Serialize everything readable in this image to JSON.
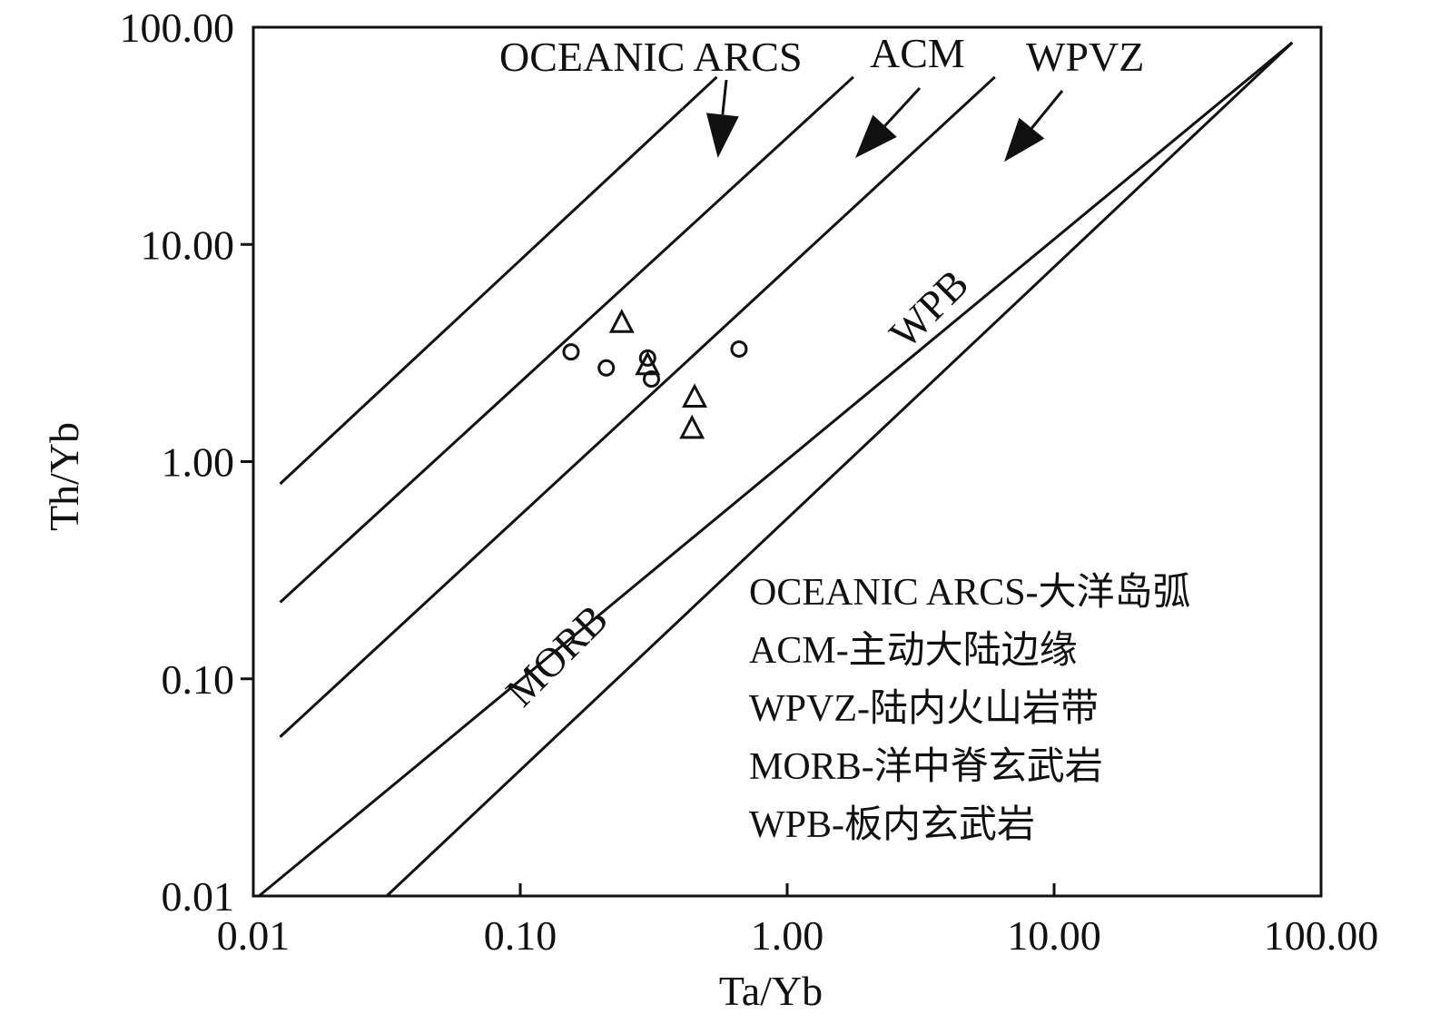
{
  "chart_data": {
    "type": "scatter",
    "xlabel": "Ta/Yb",
    "ylabel": "Th/Yb",
    "xscale": "log",
    "yscale": "log",
    "xlim": [
      0.01,
      100
    ],
    "ylim": [
      0.01,
      100
    ],
    "x_ticks": [
      0.01,
      0.1,
      1,
      10,
      100
    ],
    "x_tick_labels": [
      "0.01",
      "0.10",
      "1.00",
      "10.00",
      "100.00"
    ],
    "y_ticks": [
      0.01,
      0.1,
      1,
      10,
      100
    ],
    "y_tick_labels": [
      "0.01",
      "0.10",
      "1.00",
      "10.00",
      "100.00"
    ],
    "grid": false,
    "boundary_lines": [
      {
        "x": [
          0.0126,
          0.545
        ],
        "y": [
          0.79,
          59
        ]
      },
      {
        "x": [
          0.0126,
          1.77
        ],
        "y": [
          0.225,
          59
        ]
      },
      {
        "x": [
          0.0126,
          6.0
        ],
        "y": [
          0.054,
          59
        ]
      },
      {
        "x": [
          0.0105,
          78
        ],
        "y": [
          0.01,
          85
        ]
      },
      {
        "x": [
          0.0316,
          78
        ],
        "y": [
          0.01,
          85
        ]
      }
    ],
    "series": [
      {
        "marker": "circle",
        "points": [
          {
            "x": 0.155,
            "y": 3.2
          },
          {
            "x": 0.21,
            "y": 2.7
          },
          {
            "x": 0.3,
            "y": 3.0
          },
          {
            "x": 0.31,
            "y": 2.4
          },
          {
            "x": 0.66,
            "y": 3.3
          }
        ]
      },
      {
        "marker": "triangle",
        "points": [
          {
            "x": 0.24,
            "y": 4.3
          },
          {
            "x": 0.3,
            "y": 2.75
          },
          {
            "x": 0.45,
            "y": 1.95
          },
          {
            "x": 0.44,
            "y": 1.4
          }
        ]
      }
    ],
    "region_labels": [
      {
        "text": "OCEANIC ARCS",
        "arrow_to": {
          "x": 0.55,
          "y": 25
        }
      },
      {
        "text": "ACM",
        "arrow_to": {
          "x": 1.8,
          "y": 25
        }
      },
      {
        "text": "WPVZ",
        "arrow_to": {
          "x": 6.5,
          "y": 24
        }
      },
      {
        "text": "MORB",
        "rotated": true
      },
      {
        "text": "WPB",
        "rotated": true
      }
    ],
    "legend": {
      "position": "bottom-right",
      "entries": [
        "OCEANIC ARCS-大洋岛弧",
        "ACM-主动大陆边缘",
        "WPVZ-陆内火山岩带",
        "MORB-洋中脊玄武岩",
        "WPB-板内玄武岩"
      ]
    }
  }
}
